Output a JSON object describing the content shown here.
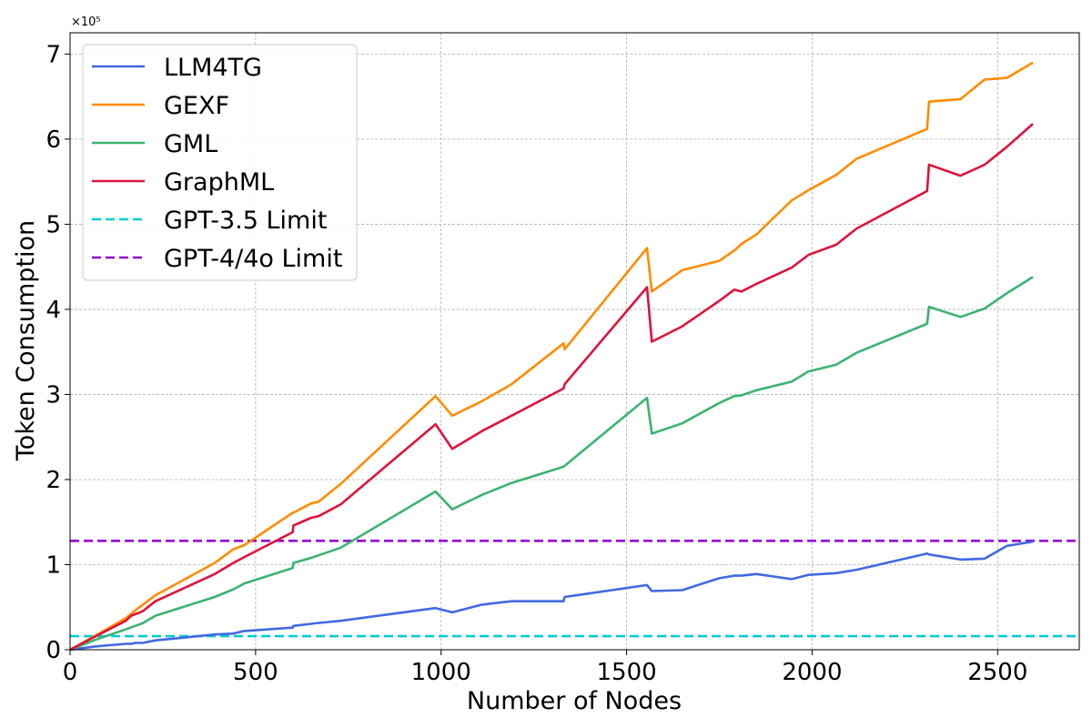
{
  "chart_data": {
    "type": "line",
    "title": "",
    "xlabel": "Number of Nodes",
    "ylabel": "Token Consumption",
    "y_scale_label": "×10⁵",
    "xlim": [
      0,
      2720
    ],
    "ylim": [
      0,
      7.25
    ],
    "xticks": [
      0,
      500,
      1000,
      1500,
      2000,
      2500
    ],
    "yticks": [
      0,
      1,
      2,
      3,
      4,
      5,
      6,
      7
    ],
    "grid": true,
    "legend_position": "top-left",
    "series": [
      {
        "name": "LLM4TG",
        "color": "#4169e1",
        "style": "solid",
        "x": [
          0,
          70,
          150,
          165,
          175,
          195,
          230,
          300,
          390,
          440,
          470,
          600,
          602,
          660,
          730,
          985,
          1030,
          1110,
          1190,
          1330,
          1333,
          1555,
          1568,
          1650,
          1750,
          1790,
          1810,
          1850,
          1945,
          1990,
          2065,
          2120,
          2310,
          2315,
          2400,
          2465,
          2525,
          2595
        ],
        "y": [
          0,
          0.04,
          0.07,
          0.07,
          0.08,
          0.08,
          0.11,
          0.14,
          0.18,
          0.19,
          0.22,
          0.26,
          0.28,
          0.31,
          0.34,
          0.49,
          0.44,
          0.53,
          0.57,
          0.57,
          0.62,
          0.76,
          0.69,
          0.7,
          0.84,
          0.87,
          0.87,
          0.89,
          0.83,
          0.88,
          0.9,
          0.94,
          1.13,
          1.12,
          1.06,
          1.07,
          1.22,
          1.27
        ]
      },
      {
        "name": "GEXF",
        "color": "#ff8c00",
        "style": "solid",
        "x": [
          0,
          70,
          150,
          175,
          230,
          390,
          440,
          470,
          600,
          602,
          650,
          670,
          730,
          985,
          1030,
          1110,
          1190,
          1330,
          1333,
          1555,
          1568,
          1650,
          1750,
          1790,
          1810,
          1850,
          1945,
          1990,
          2065,
          2120,
          2310,
          2315,
          2400,
          2465,
          2525,
          2595
        ],
        "y": [
          0,
          0.17,
          0.37,
          0.46,
          0.64,
          1.02,
          1.18,
          1.23,
          1.61,
          1.61,
          1.72,
          1.74,
          1.95,
          2.98,
          2.75,
          2.92,
          3.12,
          3.6,
          3.53,
          4.72,
          4.21,
          4.46,
          4.57,
          4.69,
          4.77,
          4.88,
          5.28,
          5.4,
          5.58,
          5.77,
          6.12,
          6.44,
          6.47,
          6.7,
          6.72,
          6.9
        ]
      },
      {
        "name": "GML",
        "color": "#3cb371",
        "style": "solid",
        "x": [
          0,
          70,
          150,
          175,
          195,
          230,
          390,
          440,
          470,
          600,
          602,
          650,
          670,
          730,
          985,
          1030,
          1110,
          1190,
          1330,
          1555,
          1568,
          1650,
          1750,
          1790,
          1810,
          1850,
          1945,
          1990,
          2065,
          2120,
          2310,
          2315,
          2400,
          2465,
          2525,
          2595
        ],
        "y": [
          0,
          0.12,
          0.24,
          0.28,
          0.31,
          0.4,
          0.62,
          0.71,
          0.78,
          0.96,
          1.02,
          1.08,
          1.11,
          1.2,
          1.86,
          1.65,
          1.82,
          1.96,
          2.15,
          2.96,
          2.54,
          2.66,
          2.9,
          2.98,
          2.99,
          3.05,
          3.15,
          3.27,
          3.35,
          3.49,
          3.83,
          4.03,
          3.91,
          4.01,
          4.19,
          4.38
        ]
      },
      {
        "name": "GraphML",
        "color": "#dc143c",
        "style": "solid",
        "x": [
          0,
          70,
          150,
          165,
          195,
          230,
          390,
          440,
          470,
          600,
          602,
          650,
          670,
          730,
          985,
          1030,
          1110,
          1190,
          1330,
          1333,
          1555,
          1568,
          1650,
          1750,
          1790,
          1810,
          1850,
          1945,
          1990,
          2065,
          2120,
          2310,
          2315,
          2400,
          2465,
          2525,
          2595
        ],
        "y": [
          0,
          0.16,
          0.34,
          0.4,
          0.45,
          0.57,
          0.89,
          1.02,
          1.09,
          1.38,
          1.46,
          1.55,
          1.57,
          1.71,
          2.65,
          2.36,
          2.57,
          2.75,
          3.07,
          3.12,
          4.26,
          3.62,
          3.8,
          4.1,
          4.23,
          4.21,
          4.3,
          4.49,
          4.64,
          4.76,
          4.95,
          5.39,
          5.7,
          5.57,
          5.7,
          5.91,
          6.18
        ]
      },
      {
        "name": "GPT-3.5 Limit",
        "color": "#00ced1",
        "style": "dashed",
        "value": 0.16
      },
      {
        "name": "GPT-4/4o Limit",
        "color": "#9400d3",
        "style": "dashed",
        "value": 1.28
      }
    ]
  }
}
